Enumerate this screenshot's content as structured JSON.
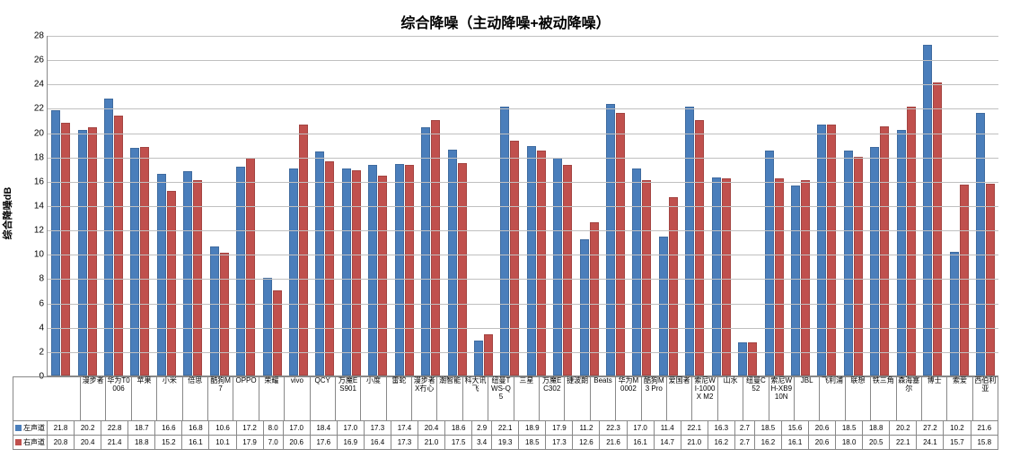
{
  "chart": {
    "title": "综合降噪（主动降噪+被动降噪）",
    "y_axis_title": "综合降噪dB",
    "ylim": [
      0,
      28
    ],
    "ytick_step": 2,
    "background_color": "#ffffff",
    "grid_color": "#c0c0c0",
    "axis_color": "#888888",
    "title_fontsize": 16,
    "label_fontsize": 10,
    "series": [
      {
        "name": "左声道",
        "color": "#4a7ebb"
      },
      {
        "name": "右声道",
        "color": "#c0504d"
      }
    ],
    "categories": [
      "漫步者",
      "华为T0006",
      "苹果",
      "小米",
      "倍思",
      "酷狗M7",
      "OPPO",
      "荣耀",
      "vivo",
      "QCY",
      "万魔ES901",
      "小度",
      "雷蛇",
      "漫步者X冇心",
      "潮智能",
      "科大讯飞",
      "纽曼TWS-Q5",
      "三星",
      "万魔EC302",
      "捷波朗",
      "Beats",
      "华为M0002",
      "酷狗M3 Pro",
      "爱国者",
      "索尼WI-1000X M2",
      "山水",
      "纽曼C52",
      "索尼WH-XB910N",
      "JBL",
      "飞利浦",
      "联想",
      "铁三角",
      "森海塞尔",
      "博士",
      "索爱",
      "西伯利亚"
    ],
    "data": {
      "左声道": [
        21.8,
        20.2,
        22.8,
        18.7,
        16.6,
        16.8,
        10.6,
        17.2,
        8.0,
        17.0,
        18.4,
        17.0,
        17.3,
        17.4,
        20.4,
        18.6,
        2.9,
        22.1,
        18.9,
        17.9,
        11.2,
        22.3,
        17.0,
        11.4,
        22.1,
        16.3,
        2.7,
        18.5,
        15.6,
        20.6,
        18.5,
        18.8,
        20.2,
        27.2,
        10.2,
        21.6
      ],
      "右声道": [
        20.8,
        20.4,
        21.4,
        18.8,
        15.2,
        16.1,
        10.1,
        17.9,
        7.0,
        20.6,
        17.6,
        16.9,
        16.4,
        17.3,
        21.0,
        17.5,
        3.4,
        19.3,
        18.5,
        17.3,
        12.6,
        21.6,
        16.1,
        14.7,
        21.0,
        16.2,
        2.7,
        16.2,
        16.1,
        20.6,
        18.0,
        20.5,
        22.1,
        24.1,
        15.7,
        15.8
      ]
    }
  }
}
